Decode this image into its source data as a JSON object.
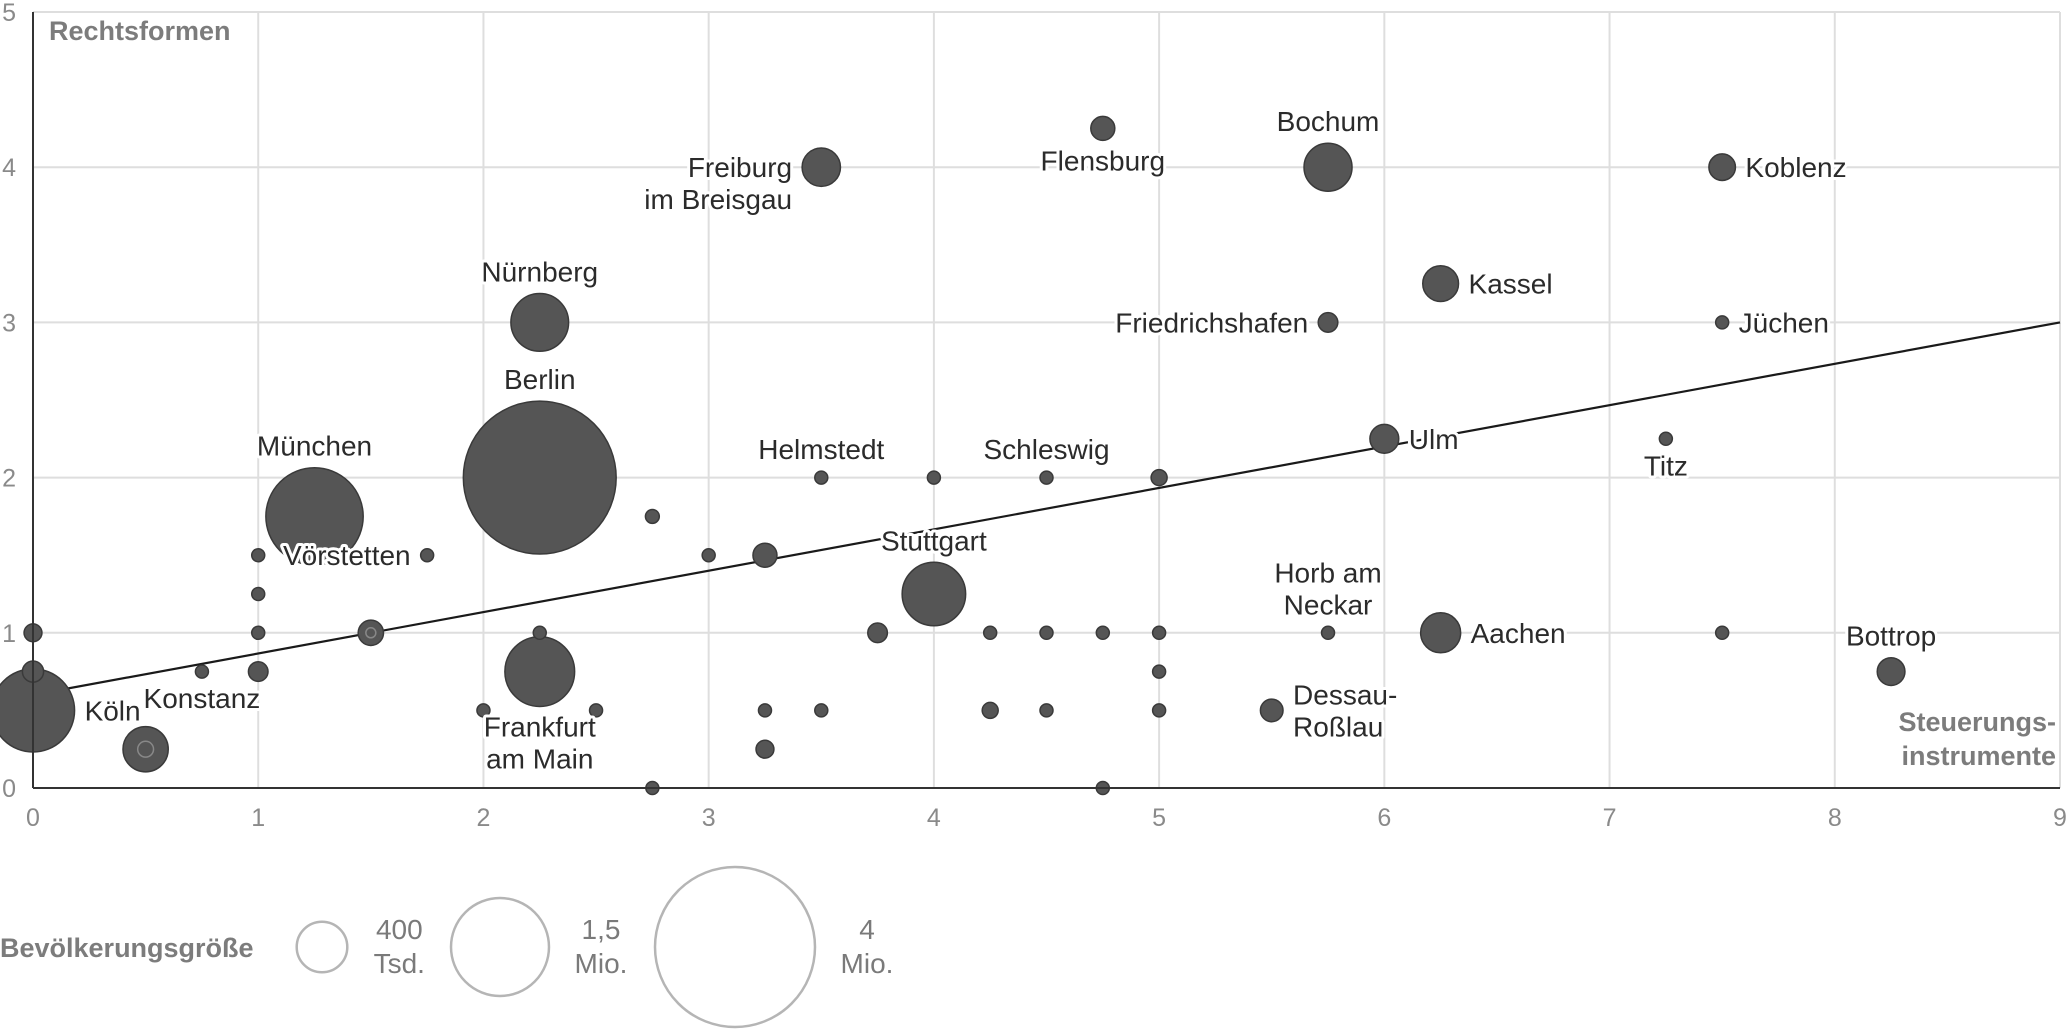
{
  "chart_data": {
    "type": "scatter",
    "ylabel": "Rechtsformen",
    "xlabel": [
      "Steuerungs-",
      "instrumente"
    ],
    "xlim": [
      0,
      9
    ],
    "ylim": [
      0,
      5
    ],
    "xticks": [
      "0",
      "1",
      "2",
      "3",
      "4",
      "5",
      "6",
      "7",
      "8",
      "9"
    ],
    "yticks": [
      "0",
      "1",
      "2",
      "3",
      "4",
      "5"
    ],
    "grid": true,
    "colors": {
      "bubble": "#555555",
      "bubble_stroke": "#3a3a3a",
      "grid": "#dedede",
      "trend": "#1a1a1a",
      "legend_stroke": "#b5b5b5"
    },
    "trendline": {
      "start": [
        0,
        0.6
      ],
      "end": [
        9,
        3.0
      ]
    },
    "points": [
      {
        "x": 0,
        "y": 0.5,
        "pop": 1.08,
        "label": [
          "Köln"
        ],
        "anchor": "right"
      },
      {
        "x": 0.5,
        "y": 0.25,
        "pop": 0.32,
        "ring": true
      },
      {
        "x": 0,
        "y": 1,
        "pop": 0.05
      },
      {
        "x": 0,
        "y": 0.75,
        "pop": 0.07
      },
      {
        "x": 0.75,
        "y": 0.75,
        "pop": 0.02,
        "label": [
          "Konstanz"
        ],
        "anchor": "below"
      },
      {
        "x": 1,
        "y": 0.75,
        "pop": 0.06
      },
      {
        "x": 1,
        "y": 1,
        "pop": 0.02
      },
      {
        "x": 1,
        "y": 1.25,
        "pop": 0.02
      },
      {
        "x": 1,
        "y": 1.5,
        "pop": 0.015
      },
      {
        "x": 1.25,
        "y": 1.75,
        "pop": 1.48,
        "label": [
          "München"
        ],
        "anchor": "above"
      },
      {
        "x": 1.5,
        "y": 1,
        "pop": 0.1,
        "ring": true
      },
      {
        "x": 1.75,
        "y": 1.5,
        "pop": 0.01,
        "label": [
          "Vörstetten"
        ],
        "anchor": "left"
      },
      {
        "x": 2,
        "y": 0.5,
        "pop": 0.015
      },
      {
        "x": 2.25,
        "y": 2,
        "pop": 3.65,
        "label": [
          "Berlin"
        ],
        "anchor": "above"
      },
      {
        "x": 2.25,
        "y": 0.75,
        "pop": 0.76,
        "label": [
          "Frankfurt",
          "am Main"
        ],
        "anchor": "below"
      },
      {
        "x": 2.25,
        "y": 1,
        "pop": 0.008
      },
      {
        "x": 2.25,
        "y": 3,
        "pop": 0.52,
        "label": [
          "Nürnberg"
        ],
        "anchor": "above"
      },
      {
        "x": 2.5,
        "y": 0.5,
        "pop": 0.015
      },
      {
        "x": 2.75,
        "y": 0,
        "pop": 0.02
      },
      {
        "x": 2.75,
        "y": 1.75,
        "pop": 0.03
      },
      {
        "x": 3,
        "y": 1.5,
        "pop": 0.01
      },
      {
        "x": 3.25,
        "y": 1.5,
        "pop": 0.09
      },
      {
        "x": 3.25,
        "y": 0.5,
        "pop": 0.02
      },
      {
        "x": 3.25,
        "y": 0.25,
        "pop": 0.05
      },
      {
        "x": 3.5,
        "y": 0.5,
        "pop": 0.01
      },
      {
        "x": 3.5,
        "y": 2,
        "pop": 0.02,
        "label": [
          "Helmstedt"
        ],
        "anchor": "above"
      },
      {
        "x": 3.5,
        "y": 4,
        "pop": 0.23,
        "label": [
          "Freiburg",
          "im Breisgau"
        ],
        "anchor": "left"
      },
      {
        "x": 3.75,
        "y": 1,
        "pop": 0.06
      },
      {
        "x": 4,
        "y": 1.25,
        "pop": 0.63,
        "label": [
          "Stuttgart"
        ],
        "anchor": "above"
      },
      {
        "x": 4,
        "y": 2,
        "pop": 0.015
      },
      {
        "x": 4.25,
        "y": 1,
        "pop": 0.01
      },
      {
        "x": 4.25,
        "y": 0.5,
        "pop": 0.04
      },
      {
        "x": 4.5,
        "y": 0.5,
        "pop": 0.01
      },
      {
        "x": 4.5,
        "y": 1,
        "pop": 0.02
      },
      {
        "x": 4.5,
        "y": 2,
        "pop": 0.02,
        "label": [
          "Schleswig"
        ],
        "anchor": "above"
      },
      {
        "x": 4.75,
        "y": 1,
        "pop": 0.015
      },
      {
        "x": 4.75,
        "y": 0,
        "pop": 0.015
      },
      {
        "x": 4.75,
        "y": 4.25,
        "pop": 0.09,
        "label": [
          "Flensburg"
        ],
        "anchor": "below"
      },
      {
        "x": 5,
        "y": 1,
        "pop": 0.01
      },
      {
        "x": 5,
        "y": 0.75,
        "pop": 0.01
      },
      {
        "x": 5,
        "y": 0.5,
        "pop": 0.008
      },
      {
        "x": 5,
        "y": 2,
        "pop": 0.04
      },
      {
        "x": 5.5,
        "y": 0.5,
        "pop": 0.08,
        "label": [
          "Dessau-",
          "Roßlau"
        ],
        "anchor": "right"
      },
      {
        "x": 5.75,
        "y": 1,
        "pop": 0.025,
        "label": [
          "Horb am",
          "Neckar"
        ],
        "anchor": "above"
      },
      {
        "x": 5.75,
        "y": 3,
        "pop": 0.06,
        "label": [
          "Friedrichshafen"
        ],
        "anchor": "left"
      },
      {
        "x": 5.75,
        "y": 4,
        "pop": 0.36,
        "label": [
          "Bochum"
        ],
        "anchor": "above"
      },
      {
        "x": 6,
        "y": 2.25,
        "pop": 0.13,
        "label": [
          "Ulm"
        ],
        "anchor": "right"
      },
      {
        "x": 6.25,
        "y": 1,
        "pop": 0.25,
        "label": [
          "Aachen"
        ],
        "anchor": "right"
      },
      {
        "x": 6.25,
        "y": 3.25,
        "pop": 0.2,
        "label": [
          "Kassel"
        ],
        "anchor": "right"
      },
      {
        "x": 7.25,
        "y": 2.25,
        "pop": 0.012,
        "label": [
          "Titz"
        ],
        "anchor": "below"
      },
      {
        "x": 7.5,
        "y": 1,
        "pop": 0.02
      },
      {
        "x": 7.5,
        "y": 3,
        "pop": 0.023,
        "label": [
          "Jüchen"
        ],
        "anchor": "right"
      },
      {
        "x": 7.5,
        "y": 4,
        "pop": 0.11,
        "label": [
          "Koblenz"
        ],
        "anchor": "right"
      },
      {
        "x": 8.25,
        "y": 0.75,
        "pop": 0.12,
        "label": [
          "Bottrop"
        ],
        "anchor": "above"
      }
    ],
    "size_legend": {
      "title": "Bevölkerungsgröße",
      "entries": [
        {
          "pop": 0.4,
          "label": [
            "400",
            "Tsd."
          ]
        },
        {
          "pop": 1.5,
          "label": [
            "1,5",
            "Mio."
          ]
        },
        {
          "pop": 4.0,
          "label": [
            "4",
            "Mio."
          ]
        }
      ]
    }
  }
}
